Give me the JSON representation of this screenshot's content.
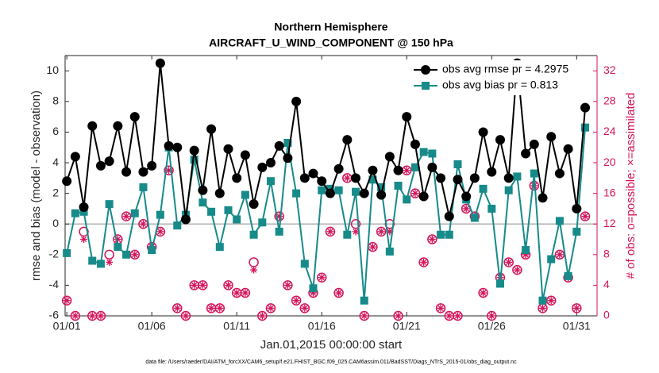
{
  "chart_data": {
    "type": "line",
    "title": "Northern Hemisphere",
    "subtitle": "AIRCRAFT_U_WIND_COMPONENT @ 150 hPa",
    "xlabel": "Jan.01,2015 00:00:00 start",
    "ylabel": "rmse and bias (model - observation)",
    "y2label": "# of obs: o=possible; ×=assimilated",
    "footnote": "data file: /Users/raeder/DAI/ATM_forcXX/CAM6_setup/f.e21.FHIST_BGC.f09_025.CAM6assim.011/BadSST/Diags_NTrS_2015-01/obs_diag_output.nc",
    "x": [
      1,
      1.5,
      2,
      2.5,
      3,
      3.5,
      4,
      4.5,
      5,
      5.5,
      6,
      6.5,
      7,
      7.5,
      8,
      8.5,
      9,
      9.5,
      10,
      10.5,
      11,
      11.5,
      12,
      12.5,
      13,
      13.5,
      14,
      14.5,
      15,
      15.5,
      16,
      16.5,
      17,
      17.5,
      18,
      18.5,
      19,
      19.5,
      20,
      20.5,
      21,
      21.5,
      22,
      22.5,
      23,
      23.5,
      24,
      24.5,
      25,
      25.5,
      26,
      26.5,
      27,
      27.5,
      28,
      28.5,
      29,
      29.5,
      30,
      30.5,
      31,
      31.5
    ],
    "xlim": [
      0.9,
      32.2
    ],
    "xticks": [
      {
        "value": 1,
        "label": "01/01"
      },
      {
        "value": 6,
        "label": "01/06"
      },
      {
        "value": 11,
        "label": "01/11"
      },
      {
        "value": 16,
        "label": "01/16"
      },
      {
        "value": 21,
        "label": "01/21"
      },
      {
        "value": 26,
        "label": "01/26"
      },
      {
        "value": 31,
        "label": "01/31"
      }
    ],
    "ylim": [
      -6,
      11
    ],
    "yticks": [
      -6,
      -4,
      -2,
      0,
      2,
      4,
      6,
      8,
      10
    ],
    "y2lim": [
      0,
      34
    ],
    "y2ticks": [
      0,
      4,
      8,
      12,
      16,
      20,
      24,
      28,
      32
    ],
    "grid": false,
    "legend": "upper right",
    "series": [
      {
        "name": "obs avg rmse pr = 4.2975",
        "color": "#000000",
        "marker": "circle",
        "values": [
          2.8,
          4.4,
          1.1,
          6.4,
          3.8,
          4.1,
          6.4,
          3.4,
          7.0,
          3.4,
          3.8,
          10.5,
          5.1,
          5.0,
          0.3,
          4.8,
          2.2,
          6.2,
          2.0,
          4.9,
          3.0,
          4.5,
          1.3,
          3.7,
          4.0,
          5.1,
          4.3,
          8.0,
          3.0,
          3.3,
          2.8,
          2.0,
          3.6,
          5.5,
          3.0,
          2.0,
          3.5,
          1.9,
          4.4,
          3.5,
          7.0,
          5.2,
          1.8,
          3.7,
          3.0,
          0.5,
          2.9,
          1.8,
          3.0,
          6.0,
          3.4,
          5.5,
          3.0,
          10.5,
          4.6,
          5.2,
          1.7,
          5.7,
          3.3,
          4.9,
          1.0,
          7.6
        ]
      },
      {
        "name": "obs avg bias pr = 0.813",
        "color": "#178a8a",
        "marker": "square",
        "values": [
          -1.9,
          0.7,
          0.8,
          -2.4,
          -2.6,
          1.3,
          -1.5,
          -2.0,
          0.7,
          2.4,
          -1.7,
          0.6,
          5.0,
          -0.1,
          0.6,
          4.2,
          1.4,
          0.8,
          -1.5,
          0.9,
          0.3,
          1.9,
          -0.7,
          0.1,
          2.8,
          -0.5,
          5.3,
          2.0,
          -2.6,
          -4.2,
          2.2,
          2.3,
          2.2,
          -0.7,
          2.1,
          -5.0,
          2.9,
          2.4,
          -1.8,
          2.5,
          1.6,
          3.7,
          4.7,
          4.6,
          -0.7,
          -0.7,
          3.9,
          1.6,
          0.4,
          2.3,
          1.0,
          -3.9,
          2.2,
          3.1,
          -1.7,
          3.3,
          -5.0,
          -2.3,
          0.2,
          -3.4,
          -0.5,
          6.3
        ]
      },
      {
        "color": "#d4145a",
        "marker": "o",
        "axis": "y2",
        "values": [
          2,
          0,
          11,
          0,
          0,
          8,
          10,
          13,
          8,
          12,
          9,
          11,
          19,
          1,
          0,
          4,
          4,
          1,
          1,
          4,
          3,
          3,
          7,
          0,
          1,
          13,
          4,
          2,
          1,
          3,
          5,
          11,
          3,
          18,
          12,
          0,
          9,
          11,
          12,
          0,
          19,
          16,
          7,
          10,
          1,
          0,
          0,
          14,
          13,
          3,
          0,
          5,
          7,
          6,
          8,
          17,
          1,
          2,
          8,
          5,
          1,
          13
        ]
      },
      {
        "color": "#d4145a",
        "marker": "asterisk",
        "axis": "y2",
        "values": [
          2,
          0,
          10,
          0,
          0,
          7,
          10,
          13,
          8,
          12,
          9,
          11,
          19,
          1,
          0,
          4,
          4,
          1,
          1,
          4,
          3,
          3,
          6,
          0,
          1,
          13,
          4,
          2,
          1,
          3,
          5,
          11,
          3,
          18,
          11,
          0,
          9,
          11,
          11,
          0,
          19,
          16,
          7,
          10,
          1,
          0,
          0,
          14,
          13,
          3,
          0,
          5,
          7,
          6,
          8,
          17,
          1,
          2,
          8,
          5,
          1,
          13
        ]
      }
    ]
  }
}
